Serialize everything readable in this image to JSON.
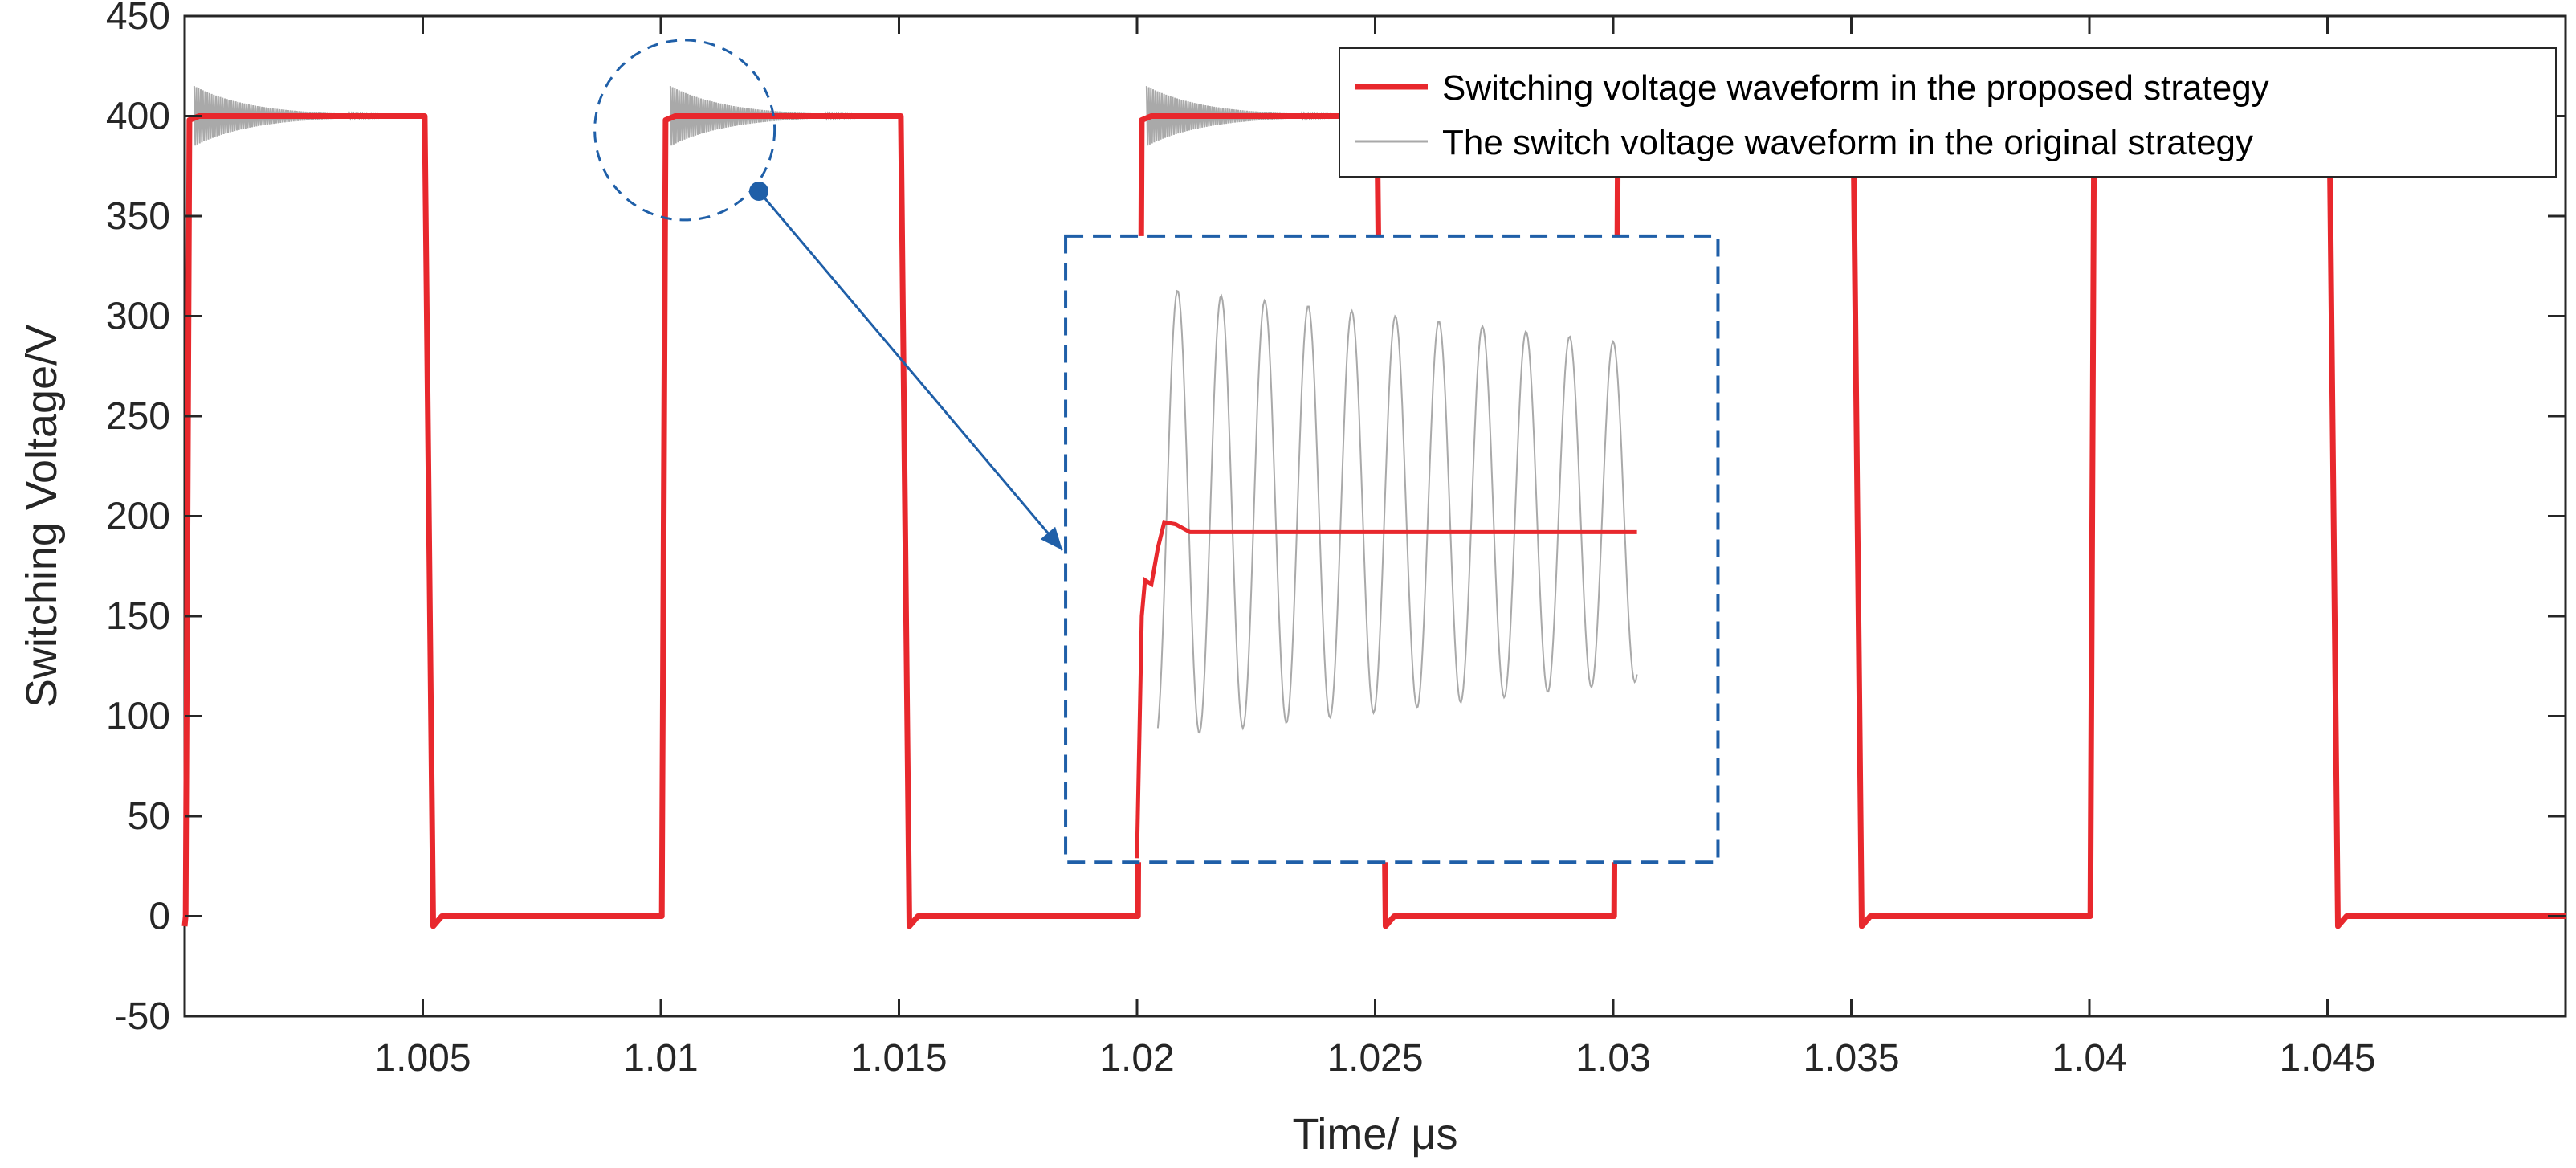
{
  "chart_data": {
    "type": "line",
    "xlabel": "Time/ μs",
    "ylabel": "Switching Voltage/V",
    "xlim": [
      1.0,
      1.05
    ],
    "ylim": [
      -50,
      450
    ],
    "x_ticks": [
      1.005,
      1.01,
      1.015,
      1.02,
      1.025,
      1.03,
      1.035,
      1.04,
      1.045
    ],
    "x_tick_labels": [
      "1.005",
      "1.01",
      "1.015",
      "1.02",
      "1.025",
      "1.03",
      "1.035",
      "1.04",
      "1.045"
    ],
    "y_ticks": [
      -50,
      0,
      50,
      100,
      150,
      200,
      250,
      300,
      350,
      400,
      450
    ],
    "y_tick_labels": [
      "-50",
      "0",
      "50",
      "100",
      "150",
      "200",
      "250",
      "300",
      "350",
      "400",
      "450"
    ],
    "grid": false,
    "legend_position": "top-right",
    "series": [
      {
        "name": "Switching voltage waveform in the proposed strategy",
        "color": "#e8282d",
        "high_value": 400,
        "low_value": 0,
        "rising_edges": [
          1.0001,
          1.0101,
          1.0201,
          1.0301,
          1.0401
        ],
        "falling_edges": [
          1.0051,
          1.0151,
          1.0251,
          1.0351,
          1.0451
        ]
      },
      {
        "name": "The switch voltage waveform in the original strategy",
        "color": "#a9a9a9",
        "ringing_start": [
          1.0002,
          1.0102,
          1.0202
        ],
        "ringing_peak": 415,
        "ringing_trough": 385,
        "ringing_decay_to": 400
      }
    ],
    "annotations": {
      "zoom_circle_center": [
        1.0105,
        393
      ],
      "zoom_box_x": [
        1.0185,
        1.0322
      ],
      "zoom_box_y": [
        27,
        340
      ],
      "zoom_inset_ringing_max": 312,
      "zoom_inset_ringing_min": 87,
      "zoom_inset_settled": 192
    }
  }
}
